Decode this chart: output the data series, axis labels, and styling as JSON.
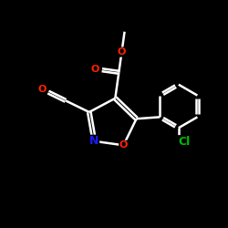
{
  "background_color": "#000000",
  "bond_color": "#ffffff",
  "atom_colors": {
    "O": "#ff2200",
    "N": "#1a1aff",
    "Cl": "#00bb00",
    "C": "#ffffff"
  },
  "bond_width": 1.8,
  "figsize": [
    2.5,
    2.5
  ],
  "dpi": 100,
  "xlim": [
    0,
    10
  ],
  "ylim": [
    0,
    10
  ]
}
